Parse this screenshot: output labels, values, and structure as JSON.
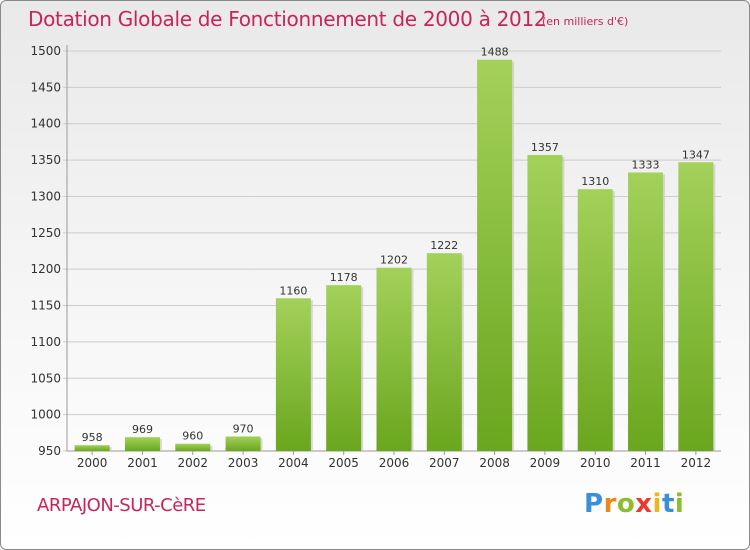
{
  "header": {
    "title": "Dotation Globale de Fonctionnement de 2000 à 2012",
    "unit_note": "(en milliers d'€)"
  },
  "footer": {
    "commune": "ARPAJON-SUR-CèRE",
    "logo_letters": [
      {
        "char": "P",
        "color": "#3a8fd9"
      },
      {
        "char": "r",
        "color": "#e8891c"
      },
      {
        "char": "o",
        "color": "#8bbd2e"
      },
      {
        "char": "x",
        "color": "#e83b2e"
      },
      {
        "char": "i",
        "color": "#f0b51c"
      },
      {
        "char": "t",
        "color": "#3a8fd9"
      },
      {
        "char": "i",
        "color": "#8bbd2e"
      }
    ]
  },
  "colors": {
    "title": "#c7245a",
    "bar_top": "#a3d15a",
    "bar_bottom": "#6aa61e",
    "grid": "#cccccc",
    "axis_text": "#333333"
  },
  "chart_data": {
    "type": "bar",
    "categories": [
      "2000",
      "2001",
      "2002",
      "2003",
      "2004",
      "2005",
      "2006",
      "2007",
      "2008",
      "2009",
      "2010",
      "2011",
      "2012"
    ],
    "values": [
      958,
      969,
      960,
      970,
      1160,
      1178,
      1202,
      1222,
      1488,
      1357,
      1310,
      1333,
      1347
    ],
    "value_labels": [
      "958",
      "969",
      "960",
      "970",
      "1160",
      "1178",
      "1202",
      "1222",
      "1488",
      "1357",
      "1310",
      "1333",
      "1347"
    ],
    "title": "Dotation Globale de Fonctionnement de 2000 à 2012",
    "subtitle": "(en milliers d'€)",
    "xlabel": "",
    "ylabel": "",
    "ylim": [
      950,
      1500
    ],
    "yticks": [
      950,
      1000,
      1050,
      1100,
      1150,
      1200,
      1250,
      1300,
      1350,
      1400,
      1450,
      1500
    ],
    "ytick_labels": [
      "950",
      "1000",
      "1050",
      "1100",
      "1150",
      "1200",
      "1250",
      "1300",
      "1350",
      "1400",
      "1450",
      "1500"
    ],
    "grid": true,
    "legend": "none"
  }
}
